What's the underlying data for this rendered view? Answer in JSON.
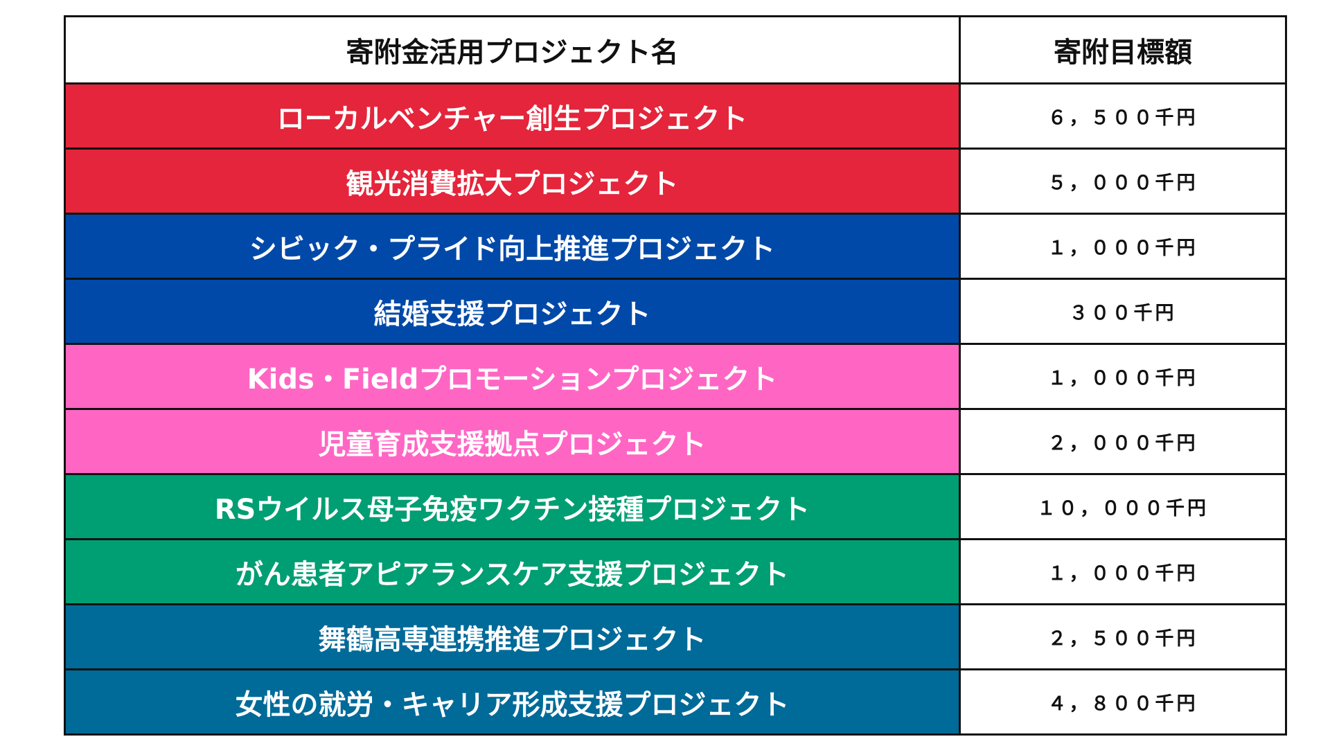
{
  "table": {
    "headers": [
      "寄附金活用プロジェクト名",
      "寄附目標額"
    ],
    "rows": [
      {
        "name": "ローカルベンチャー創生プロジェクト",
        "target": "６，５００千円",
        "color": "#e4253b"
      },
      {
        "name": "観光消費拡大プロジェクト",
        "target": "５，０００千円",
        "color": "#e4253b"
      },
      {
        "name": "シビック・プライド向上推進プロジェクト",
        "target": "１，０００千円",
        "color": "#0049a9"
      },
      {
        "name": "結婚支援プロジェクト",
        "target": "３００千円",
        "color": "#0049a9"
      },
      {
        "name": "Kids・Fieldプロモーションプロジェクト",
        "target": "１，０００千円",
        "color": "#ff66c4"
      },
      {
        "name": "児童育成支援拠点プロジェクト",
        "target": "２，０００千円",
        "color": "#ff66c4"
      },
      {
        "name": "RSウイルス母子免疫ワクチン接種プロジェクト",
        "target": "１０，０００千円",
        "color": "#009e73"
      },
      {
        "name": "がん患者アピアランスケア支援プロジェクト",
        "target": "１，０００千円",
        "color": "#009e73"
      },
      {
        "name": "舞鶴高専連携推進プロジェクト",
        "target": "２，５００千円",
        "color": "#006a99"
      },
      {
        "name": "女性の就労・キャリア形成支援プロジェクト",
        "target": "４，８００千円",
        "color": "#006a99"
      }
    ]
  }
}
